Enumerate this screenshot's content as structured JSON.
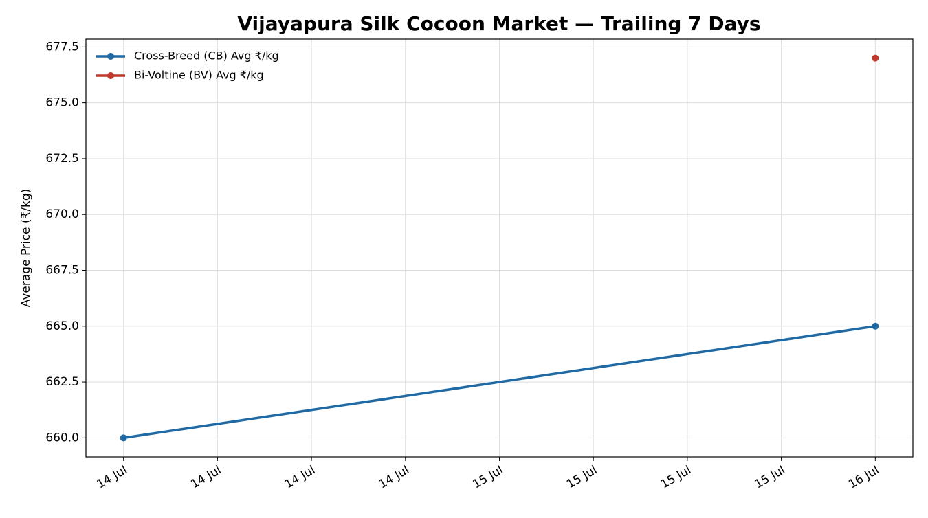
{
  "chart_data": {
    "type": "line",
    "title": "Vijayapura Silk Cocoon Market — Trailing 7 Days",
    "y_label": "Average Price (₹/kg)",
    "x": [
      14,
      16
    ],
    "series": [
      {
        "name": "Cross-Breed (CB) Avg ₹/kg",
        "color": "#1f6aa5",
        "values": [
          660,
          665
        ]
      },
      {
        "name": "Bi-Voltine (BV) Avg ₹/kg",
        "color": "#c0392b",
        "values": [
          null,
          677
        ]
      }
    ],
    "xlim": [
      13.9,
      16.1
    ],
    "xticks": [
      {
        "value": 14,
        "label": "14 Jul"
      },
      {
        "value": 14.25,
        "label": "14 Jul"
      },
      {
        "value": 14.5,
        "label": "14 Jul"
      },
      {
        "value": 14.75,
        "label": "14 Jul"
      },
      {
        "value": 15,
        "label": "15 Jul"
      },
      {
        "value": 15.25,
        "label": "15 Jul"
      },
      {
        "value": 15.5,
        "label": "15 Jul"
      },
      {
        "value": 15.75,
        "label": "15 Jul"
      },
      {
        "value": 16,
        "label": "16 Jul"
      }
    ],
    "ylim": [
      659.15,
      677.85
    ],
    "yticks": [
      {
        "value": 660,
        "label": "660.0"
      },
      {
        "value": 662.5,
        "label": "662.5"
      },
      {
        "value": 665,
        "label": "665.0"
      },
      {
        "value": 667.5,
        "label": "667.5"
      },
      {
        "value": 670,
        "label": "670.0"
      },
      {
        "value": 672.5,
        "label": "672.5"
      },
      {
        "value": 675,
        "label": "675.0"
      },
      {
        "value": 677.5,
        "label": "677.5"
      }
    ],
    "grid": true,
    "legend": "upper-left"
  }
}
